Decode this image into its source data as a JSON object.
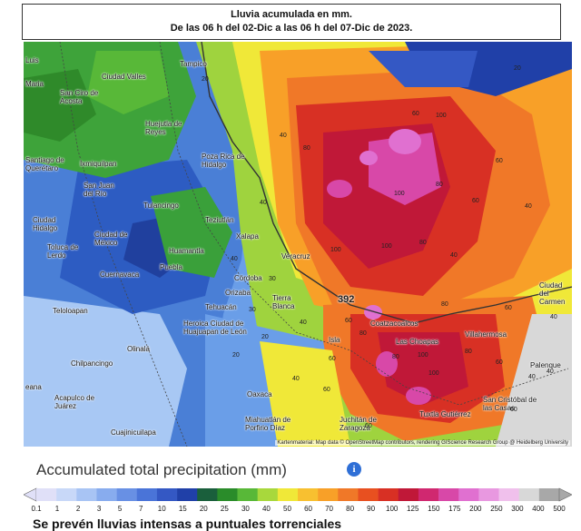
{
  "title": {
    "line1": "Lluvia acumulada en mm.",
    "line2": "De las 06 h del 02-Dic a las 06 h del 07-Dic de 2023."
  },
  "map": {
    "peak_marker": "392",
    "attribution": "Kartenmaterial: Map data © OpenStreetMap contributors, rendering GIScience Research Group @ Heidelberg University",
    "places": [
      {
        "name": "Luis"
      },
      {
        "name": "Maria"
      },
      {
        "name": "Ciudad Valles"
      },
      {
        "name": "San Ciro de Acosta"
      },
      {
        "name": "Tampico"
      },
      {
        "name": "Huejutla de Reyes"
      },
      {
        "name": "Santiago de Querétaro"
      },
      {
        "name": "Ixmiquilpan"
      },
      {
        "name": "San Juan del Río"
      },
      {
        "name": "Poza Rica de Hidalgo"
      },
      {
        "name": "Tulancingo"
      },
      {
        "name": "Teziutlán"
      },
      {
        "name": "Ciudad Hidalgo"
      },
      {
        "name": "Toluca de Lerdo"
      },
      {
        "name": "Ciudad de México"
      },
      {
        "name": "Huamantla"
      },
      {
        "name": "Xalapa"
      },
      {
        "name": "Veracruz"
      },
      {
        "name": "Puebla"
      },
      {
        "name": "Cuernavaca"
      },
      {
        "name": "Córdoba"
      },
      {
        "name": "Orizaba"
      },
      {
        "name": "Tierra Blanca"
      },
      {
        "name": "Tehuacán"
      },
      {
        "name": "Teloloapan"
      },
      {
        "name": "Heroica Ciudad de Huajuapan de León"
      },
      {
        "name": "Olinalá"
      },
      {
        "name": "Chilpancingo"
      },
      {
        "name": "Acapulco de Juárez"
      },
      {
        "name": "Cuajinicuilapa"
      },
      {
        "name": "Oaxaca"
      },
      {
        "name": "Miahuatlán de Porfirio Díaz"
      },
      {
        "name": "Juchitán de Zaragoza"
      },
      {
        "name": "Coatzacoalcos"
      },
      {
        "name": "Las Choapas"
      },
      {
        "name": "Villahermosa"
      },
      {
        "name": "Palenque"
      },
      {
        "name": "Ciudad del Carmen"
      },
      {
        "name": "Tuxtla Gutiérrez"
      },
      {
        "name": "San Cristóbal de las Casas"
      },
      {
        "name": "Isla"
      },
      {
        "name": "eana"
      }
    ],
    "contour_labels": [
      "20",
      "20",
      "40",
      "60",
      "60",
      "80",
      "100",
      "100",
      "80",
      "60",
      "40",
      "40",
      "100",
      "100",
      "80",
      "40",
      "30",
      "40",
      "60",
      "80",
      "80",
      "60",
      "40",
      "100",
      "100",
      "80",
      "60",
      "80",
      "40",
      "60",
      "60",
      "40",
      "60",
      "40",
      "30",
      "20",
      "20",
      "40",
      "60"
    ]
  },
  "legend": {
    "title": "Accumulated total precipitation (mm)",
    "info_icon": "i",
    "ticks": [
      "0.1",
      "1",
      "2",
      "3",
      "5",
      "7",
      "10",
      "15",
      "20",
      "25",
      "30",
      "40",
      "50",
      "60",
      "70",
      "80",
      "90",
      "100",
      "125",
      "150",
      "175",
      "200",
      "250",
      "300",
      "400",
      "500"
    ],
    "colors": [
      "#e0e0f8",
      "#c8d8f8",
      "#a8c4f4",
      "#88acee",
      "#6890e4",
      "#4a74d8",
      "#3458c4",
      "#2040a8",
      "#1a5f3c",
      "#2a8c2a",
      "#58b838",
      "#a8d83c",
      "#f0e838",
      "#f8c030",
      "#f8a028",
      "#f07828",
      "#e85020",
      "#d83024",
      "#c01838",
      "#d02870",
      "#d848a8",
      "#e070d0",
      "#e898e0",
      "#f0c0ec",
      "#d8d8d8",
      "#a8a8a8"
    ]
  },
  "footer": "Se prevén lluvias intensas a puntuales torrenciales"
}
